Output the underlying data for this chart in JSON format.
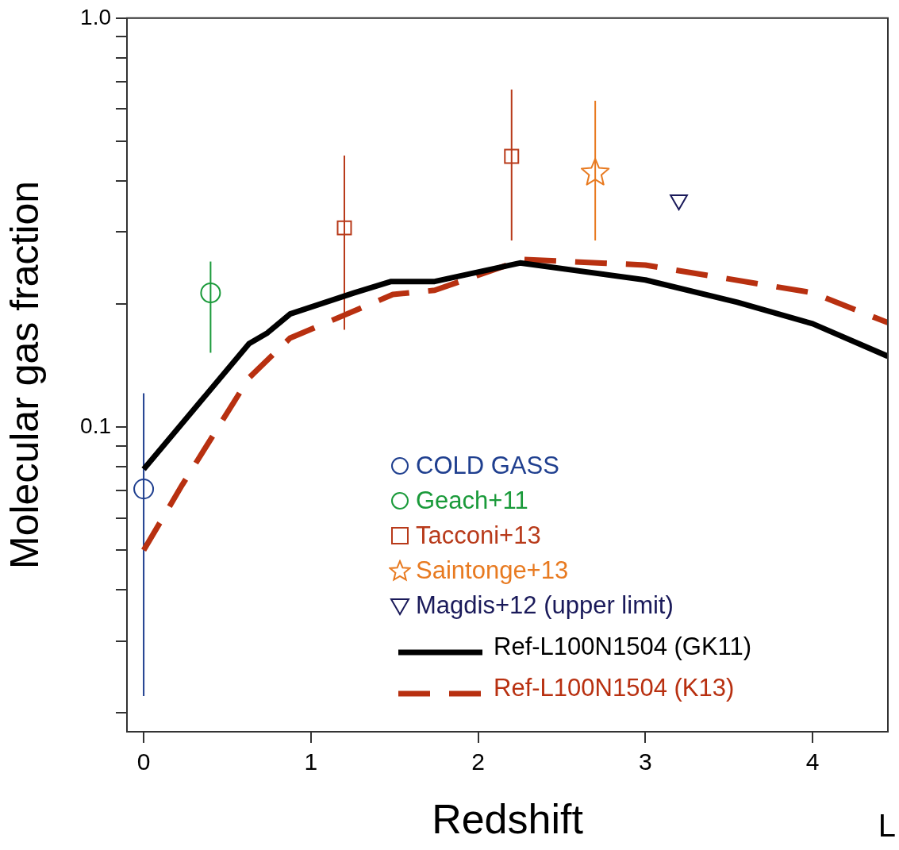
{
  "chart_data": {
    "type": "scatter",
    "xlabel": "Redshift",
    "ylabel": "Molecular gas fraction",
    "log": "y",
    "grid": false,
    "legend": "bottom",
    "xlim": [
      -0.1,
      4.45
    ],
    "xticks": [
      0,
      1,
      2,
      3,
      4
    ],
    "ylim": [
      0.018,
      1
    ],
    "yticks": [
      {
        "value": 0.02,
        "label": null
      },
      {
        "value": 0.03,
        "label": null
      },
      {
        "value": 0.04,
        "label": null
      },
      {
        "value": 0.05,
        "label": null
      },
      {
        "value": 0.06,
        "label": null
      },
      {
        "value": 0.07,
        "label": null
      },
      {
        "value": 0.08,
        "label": null
      },
      {
        "value": 0.09,
        "label": null
      },
      {
        "value": 0.1,
        "label": "0.1"
      },
      {
        "value": 0.2,
        "label": null
      },
      {
        "value": 0.3,
        "label": null
      },
      {
        "value": 0.4,
        "label": null
      },
      {
        "value": 0.5,
        "label": null
      },
      {
        "value": 0.6,
        "label": null
      },
      {
        "value": 0.7,
        "label": null
      },
      {
        "value": 0.8,
        "label": null
      },
      {
        "value": 0.9,
        "label": null
      },
      {
        "value": 1,
        "label": "1.0"
      }
    ],
    "annotations": [
      "L"
    ],
    "series": [
      {
        "name": "COLD GASS",
        "marker": "circle",
        "color": "#1f3f8f",
        "x": [
          0
        ],
        "values": [
          0.0706
        ],
        "errors": [
          [
            0.022,
            0.121
          ]
        ]
      },
      {
        "name": "Geach+11",
        "marker": "circle",
        "color": "#1a9a3a",
        "x": [
          0.4
        ],
        "values": [
          0.213
        ],
        "errors": [
          [
            0.152,
            0.254
          ]
        ]
      },
      {
        "name": "Tacconi+13",
        "marker": "square",
        "color": "#b83a1a",
        "x": [
          1.2,
          2.2
        ],
        "values": [
          0.307,
          0.459
        ],
        "errors": [
          [
            0.173,
            0.461
          ],
          [
            0.286,
            0.669
          ]
        ]
      },
      {
        "name": "Saintonge+13",
        "marker": "star",
        "color": "#e87a20",
        "x": [
          2.7
        ],
        "values": [
          0.418
        ],
        "errors": [
          [
            0.286,
            0.628
          ]
        ]
      },
      {
        "name": "Magdis+12 (upper limit)",
        "marker": "triangle",
        "color": "#1a1a5a",
        "x": [
          3.2
        ],
        "values": [
          0.359
        ]
      },
      {
        "name": "Ref-L100N1504 (GK11)",
        "type": "line",
        "marker": "none",
        "line_style": "solid",
        "color": "#000000",
        "x": [
          0,
          0.63,
          0.74,
          0.875,
          1.26,
          1.48,
          1.74,
          2.25,
          3,
          3.55,
          4,
          4.45
        ],
        "values": [
          0.0789,
          0.16,
          0.17,
          0.189,
          0.213,
          0.227,
          0.227,
          0.252,
          0.229,
          0.202,
          0.179,
          0.149
        ]
      },
      {
        "name": "Ref-L100N1504 (K13)",
        "type": "line",
        "marker": "none",
        "line_style": "dashed",
        "color": "#b83010",
        "x": [
          0,
          0.23,
          0.63,
          0.875,
          1.49,
          1.74,
          2.27,
          3,
          4,
          4.45
        ],
        "values": [
          0.05,
          0.0722,
          0.132,
          0.165,
          0.211,
          0.216,
          0.257,
          0.249,
          0.213,
          0.18
        ]
      }
    ]
  }
}
